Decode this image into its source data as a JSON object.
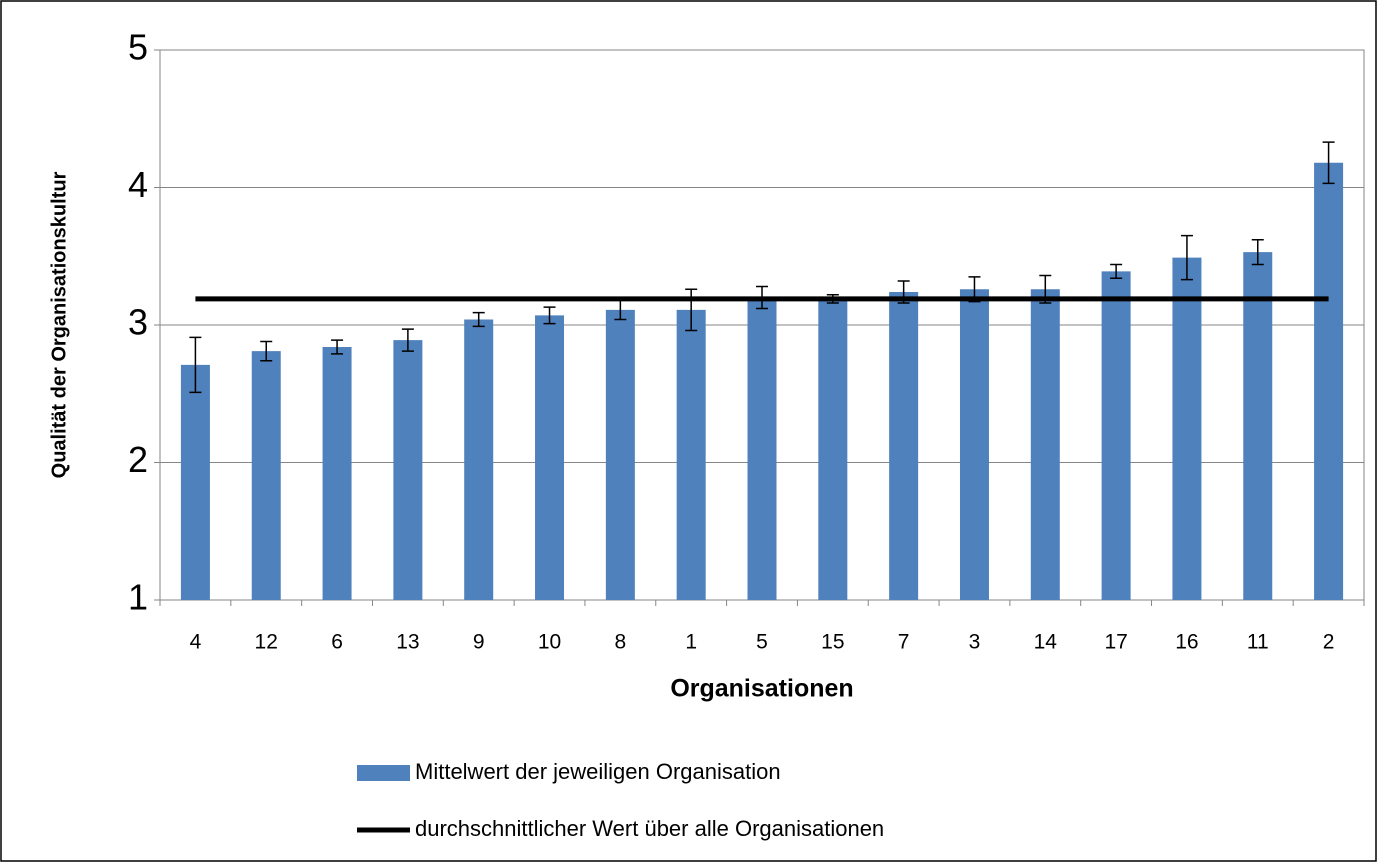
{
  "chart_data": {
    "type": "bar",
    "x_label": "Organisationen",
    "y_label": "Qualität der Organisationskultur",
    "categories": [
      "4",
      "12",
      "6",
      "13",
      "9",
      "10",
      "8",
      "1",
      "5",
      "15",
      "7",
      "3",
      "14",
      "17",
      "16",
      "11",
      "2"
    ],
    "series": [
      {
        "name": "Mittelwert der jeweiligen Organisation",
        "type": "bar",
        "color": "#4f81bd",
        "values": [
          2.71,
          2.81,
          2.84,
          2.89,
          3.04,
          3.07,
          3.11,
          3.11,
          3.2,
          3.19,
          3.24,
          3.26,
          3.26,
          3.39,
          3.49,
          3.53,
          4.18
        ],
        "errors": [
          0.2,
          0.07,
          0.05,
          0.08,
          0.05,
          0.06,
          0.07,
          0.15,
          0.08,
          0.03,
          0.08,
          0.09,
          0.1,
          0.05,
          0.16,
          0.09,
          0.15
        ]
      },
      {
        "name": "durchschnittlicher Wert über alle Organisationen",
        "type": "line",
        "color": "#000000",
        "values": [
          3.19,
          3.19,
          3.19,
          3.19,
          3.19,
          3.19,
          3.19,
          3.19,
          3.19,
          3.19,
          3.19,
          3.19,
          3.19,
          3.19,
          3.19,
          3.19,
          3.19
        ]
      }
    ],
    "ylim": [
      1,
      5
    ],
    "yticks": [
      1,
      2,
      3,
      4,
      5
    ],
    "grid": true,
    "legend": "bottom"
  }
}
